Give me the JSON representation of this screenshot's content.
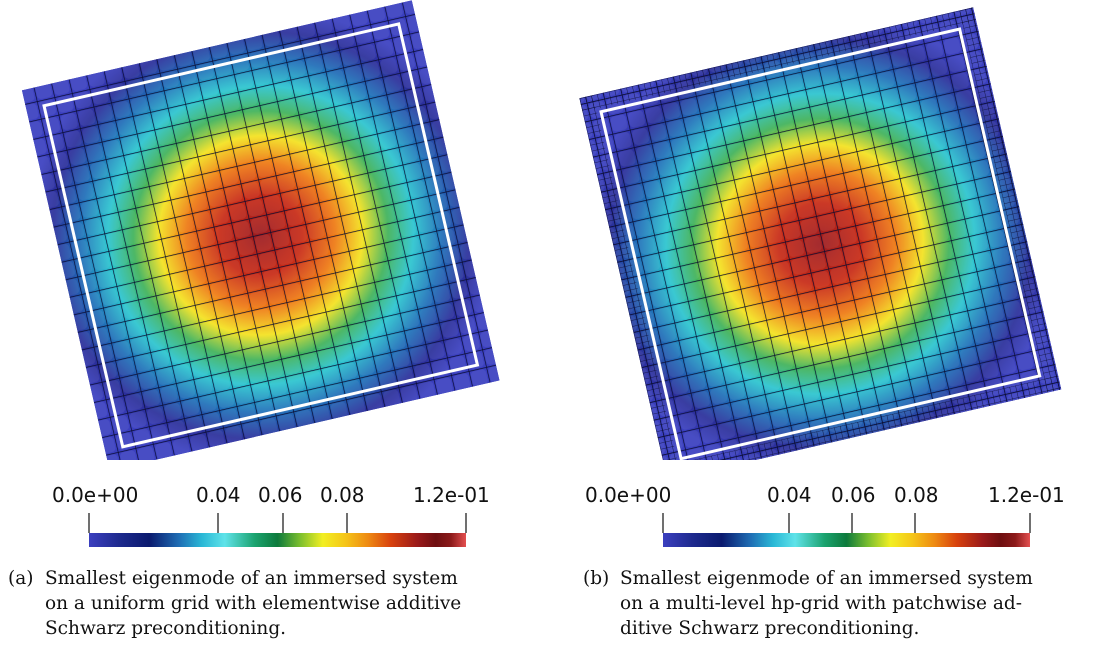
{
  "colormap": [
    "#3b3fbf",
    "#1e2a8e",
    "#0a1a6e",
    "#1f6fb5",
    "#2ab8d6",
    "#5fe3e9",
    "#1ba36f",
    "#0d7a3c",
    "#7cbf2e",
    "#f2ef23",
    "#f5c518",
    "#ee8a12",
    "#d8420d",
    "#9b1a1a",
    "#6e0f10",
    "#8c1a1a",
    "#e45050"
  ],
  "panels": [
    {
      "id": "a",
      "colorbar": {
        "min_label": "0.0e+00",
        "ticks": [
          "0.04",
          "0.06",
          "0.08"
        ],
        "max_label": "1.2e-01"
      },
      "caption": {
        "tag": "(a)",
        "lines": [
          "Smallest eigenmode of an immersed system",
          "on a uniform grid with elementwise additive",
          "Schwarz preconditioning."
        ]
      }
    },
    {
      "id": "b",
      "colorbar": {
        "min_label": "0.0e+00",
        "ticks": [
          "0.04",
          "0.06",
          "0.08"
        ],
        "max_label": "1.2e-01"
      },
      "caption": {
        "tag": "(b)",
        "lines": [
          "Smallest eigenmode of an immersed system",
          "on a multi-level hp-grid with patchwise ad-",
          "ditive Schwarz preconditioning."
        ]
      }
    }
  ]
}
